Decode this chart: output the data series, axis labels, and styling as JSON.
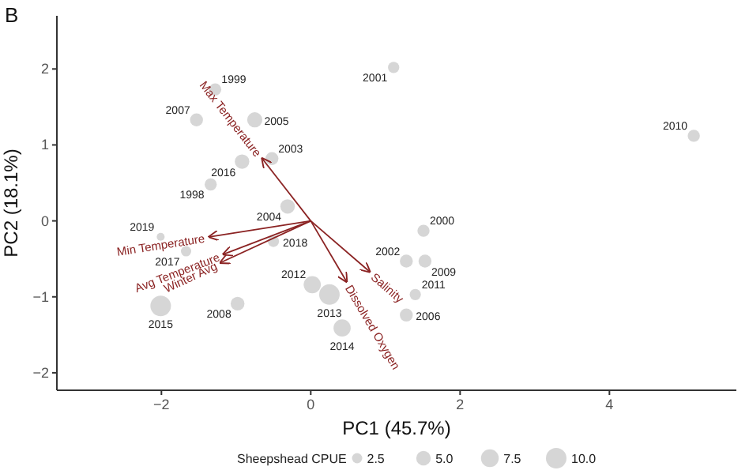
{
  "chart_data": {
    "type": "bubble",
    "title": "B",
    "xlabel": "PC1 (45.7%)",
    "ylabel": "PC2 (18.1%)",
    "legend_title": "Sheepshead CPUE",
    "legend": "bottom",
    "xlim": [
      -3.4,
      5.7
    ],
    "xticks": [
      -2,
      0,
      2,
      4
    ],
    "ylim": [
      -2.23,
      2.7
    ],
    "yticks": [
      -2,
      -1,
      0,
      1,
      2
    ],
    "size_legend": [
      2.5,
      {
        "value": 5,
        "label": "5.0"
      },
      7.5,
      {
        "value": 10,
        "label": "10.0"
      }
    ],
    "grid": false,
    "series": [
      {
        "type": "bubble",
        "marker": "circle",
        "color": "#cccccc",
        "x": [
          -1.28,
          -1.53,
          -0.75,
          -0.52,
          -0.92,
          -1.34,
          -0.31,
          1.11,
          5.13,
          1.51,
          1.28,
          1.53,
          1.4,
          1.28,
          -2.01,
          -1.67,
          -0.5,
          -2.01,
          -0.98,
          0.02,
          0.25,
          0.42
        ],
        "values": [
          1.73,
          1.33,
          1.33,
          0.82,
          0.78,
          0.48,
          0.19,
          2.02,
          1.12,
          -0.13,
          -0.53,
          -0.53,
          -0.97,
          -1.24,
          -0.21,
          -0.4,
          -0.27,
          -1.12,
          -1.09,
          -0.84,
          -0.97,
          -1.41
        ],
        "sizes": [
          3.5,
          4,
          5.5,
          4,
          5,
          3.5,
          5,
          3,
          3.5,
          3.5,
          4,
          4,
          3,
          4,
          1.5,
          2.5,
          3,
          10,
          4.5,
          7,
          10,
          7
        ]
      },
      {
        "type": "line",
        "name": "Max Temperature",
        "color": "#8b2323",
        "x": [
          0,
          -0.65
        ],
        "values": [
          0,
          0.82
        ]
      },
      {
        "type": "line",
        "name": "Min Temperature",
        "color": "#8b2323",
        "x": [
          0,
          -1.36
        ],
        "values": [
          0,
          -0.21
        ]
      },
      {
        "type": "line",
        "name": "Avg Temperature",
        "color": "#8b2323",
        "x": [
          0,
          -1.17
        ],
        "values": [
          0,
          -0.44
        ]
      },
      {
        "type": "line",
        "name": "Winter Avg",
        "color": "#8b2323",
        "x": [
          0,
          -1.21
        ],
        "values": [
          0,
          -0.55
        ]
      },
      {
        "type": "line",
        "name": "Salinity",
        "color": "#8b2323",
        "x": [
          0,
          0.79
        ],
        "values": [
          0,
          -0.67
        ]
      },
      {
        "type": "line",
        "name": "Dissolved Oxygen",
        "color": "#8b2323",
        "x": [
          0,
          0.48
        ],
        "values": [
          0,
          -0.8
        ]
      }
    ],
    "annotations": [
      {
        "text": "1999",
        "x": -1.28,
        "y": 1.73
      },
      {
        "text": "2007",
        "x": -1.53,
        "y": 1.33
      },
      {
        "text": "2005",
        "x": -0.75,
        "y": 1.33
      },
      {
        "text": "2003",
        "x": -0.52,
        "y": 0.82
      },
      {
        "text": "2016",
        "x": -0.92,
        "y": 0.78
      },
      {
        "text": "1998",
        "x": -1.34,
        "y": 0.48
      },
      {
        "text": "2004",
        "x": -0.31,
        "y": 0.19
      },
      {
        "text": "2001",
        "x": 1.11,
        "y": 2.02
      },
      {
        "text": "2010",
        "x": 5.13,
        "y": 1.12
      },
      {
        "text": "2000",
        "x": 1.51,
        "y": -0.13
      },
      {
        "text": "2002",
        "x": 1.28,
        "y": -0.53
      },
      {
        "text": "2009",
        "x": 1.53,
        "y": -0.53
      },
      {
        "text": "2011",
        "x": 1.4,
        "y": -0.97
      },
      {
        "text": "2006",
        "x": 1.28,
        "y": -1.24
      },
      {
        "text": "2019",
        "x": -2.01,
        "y": -0.21
      },
      {
        "text": "2017",
        "x": -1.67,
        "y": -0.4
      },
      {
        "text": "2018",
        "x": -0.5,
        "y": -0.27
      },
      {
        "text": "2015",
        "x": -2.01,
        "y": -1.12
      },
      {
        "text": "2008",
        "x": -0.98,
        "y": -1.09
      },
      {
        "text": "2012",
        "x": 0.02,
        "y": -0.84
      },
      {
        "text": "2013",
        "x": 0.25,
        "y": -0.97
      },
      {
        "text": "2014",
        "x": 0.42,
        "y": -1.41
      }
    ]
  }
}
